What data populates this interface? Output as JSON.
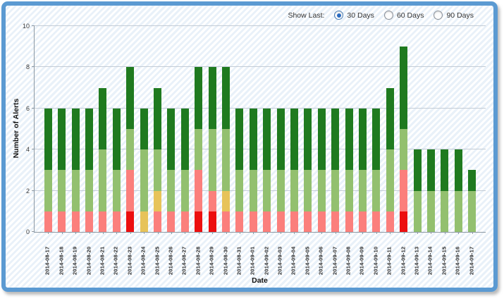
{
  "frame": {
    "border_color": "#5b9ad2"
  },
  "controls": {
    "label": "Show Last:",
    "options": [
      {
        "label": "30 Days",
        "selected": true
      },
      {
        "label": "60 Days",
        "selected": false
      },
      {
        "label": "90 Days",
        "selected": false
      }
    ]
  },
  "chart_data": {
    "type": "bar",
    "stacked": true,
    "title": "",
    "xlabel": "Date",
    "ylabel": "Number of Alerts",
    "ylim": [
      0,
      10
    ],
    "yticks": [
      0,
      2,
      4,
      6,
      8,
      10
    ],
    "grid": true,
    "legend": "none",
    "categories": [
      "2014-08-17",
      "2014-08-18",
      "2014-08-19",
      "2014-08-20",
      "2014-08-21",
      "2014-08-22",
      "2014-08-23",
      "2014-08-24",
      "2014-08-25",
      "2014-08-26",
      "2014-08-27",
      "2014-08-28",
      "2014-08-29",
      "2014-08-30",
      "2014-08-31",
      "2014-09-01",
      "2014-09-02",
      "2014-09-03",
      "2014-09-04",
      "2014-09-05",
      "2014-09-06",
      "2014-09-07",
      "2014-09-08",
      "2014-09-09",
      "2014-09-10",
      "2014-09-11",
      "2014-09-12",
      "2014-09-13",
      "2014-09-14",
      "2014-09-15",
      "2014-09-16",
      "2014-09-17"
    ],
    "series": [
      {
        "name": "red-alerts",
        "color": "#ec0f0f",
        "values": [
          0,
          0,
          0,
          0,
          0,
          0,
          1,
          0,
          0,
          0,
          0,
          1,
          1,
          0,
          0,
          0,
          0,
          0,
          0,
          0,
          0,
          0,
          0,
          0,
          0,
          0,
          1,
          0,
          0,
          0,
          0,
          0
        ]
      },
      {
        "name": "salmon-alerts",
        "color": "#fb7f7c",
        "values": [
          1,
          1,
          1,
          1,
          1,
          1,
          2,
          0,
          1,
          1,
          1,
          2,
          1,
          1,
          1,
          1,
          1,
          1,
          1,
          1,
          1,
          1,
          1,
          1,
          1,
          1,
          2,
          0,
          0,
          0,
          0,
          0
        ]
      },
      {
        "name": "yellow-alerts",
        "color": "#e7c35a",
        "values": [
          0,
          0,
          0,
          0,
          0,
          0,
          0,
          1,
          1,
          0,
          0,
          0,
          0,
          1,
          0,
          0,
          0,
          0,
          0,
          0,
          0,
          0,
          0,
          0,
          0,
          0,
          0,
          0,
          0,
          0,
          0,
          0
        ]
      },
      {
        "name": "light-green-alerts",
        "color": "#93c06f",
        "values": [
          2,
          2,
          2,
          2,
          3,
          2,
          2,
          3,
          2,
          2,
          2,
          2,
          3,
          3,
          2,
          2,
          2,
          2,
          2,
          2,
          2,
          2,
          2,
          2,
          2,
          3,
          2,
          2,
          2,
          2,
          2,
          2
        ]
      },
      {
        "name": "dark-green-alerts",
        "color": "#1f7a1f",
        "values": [
          3,
          3,
          3,
          3,
          3,
          3,
          3,
          2,
          3,
          3,
          3,
          3,
          3,
          3,
          3,
          3,
          3,
          3,
          3,
          3,
          3,
          3,
          3,
          3,
          3,
          3,
          4,
          2,
          2,
          2,
          2,
          1
        ]
      }
    ],
    "bar_totals": [
      6,
      6,
      6,
      6,
      7,
      6,
      8,
      6,
      7,
      6,
      6,
      8,
      8,
      8,
      6,
      6,
      6,
      6,
      6,
      6,
      6,
      6,
      6,
      6,
      6,
      7,
      9,
      4,
      4,
      4,
      4,
      3
    ]
  }
}
